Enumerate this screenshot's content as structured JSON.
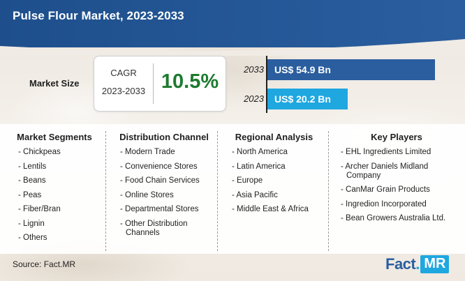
{
  "header": {
    "title": "Pulse Flour Market, 2023-2033"
  },
  "market_size": {
    "label": "Market Size",
    "cagr_label": "CAGR",
    "cagr_period": "2023-2033",
    "cagr_value": "10.5%"
  },
  "chart_data": {
    "type": "bar",
    "orientation": "horizontal",
    "categories": [
      "2033",
      "2023"
    ],
    "values": [
      54.9,
      20.2
    ],
    "value_labels": [
      "US$ 54.9 Bn",
      "US$ 20.2 Bn"
    ],
    "unit": "US$ Bn",
    "colors": [
      "#2a5e9f",
      "#1fa7e0"
    ]
  },
  "sections": [
    {
      "heading": "Market Segments",
      "items": [
        "- Chickpeas",
        "- Lentils",
        "- Beans",
        "- Peas",
        "- Fiber/Bran",
        "- Lignin",
        "- Others"
      ]
    },
    {
      "heading": "Distribution Channel",
      "items": [
        "- Modern Trade",
        "- Convenience Stores",
        "- Food Chain Services",
        "- Online Stores",
        "- Departmental Stores",
        "- Other Distribution Channels"
      ]
    },
    {
      "heading": "Regional Analysis",
      "items": [
        "- North America",
        "- Latin America",
        "- Europe",
        "- Asia Pacific",
        "- Middle East & Africa"
      ]
    },
    {
      "heading": "Key Players",
      "items": [
        "- EHL Ingredients Limited",
        "- Archer Daniels Midland Company",
        "- CanMar Grain Products",
        "- Ingredion Incorporated",
        "- Bean Growers Australia Ltd."
      ]
    }
  ],
  "footer": {
    "source": "Source: Fact.MR",
    "logo_part1": "Fact",
    "logo_dot": ".",
    "logo_part2": "MR"
  }
}
